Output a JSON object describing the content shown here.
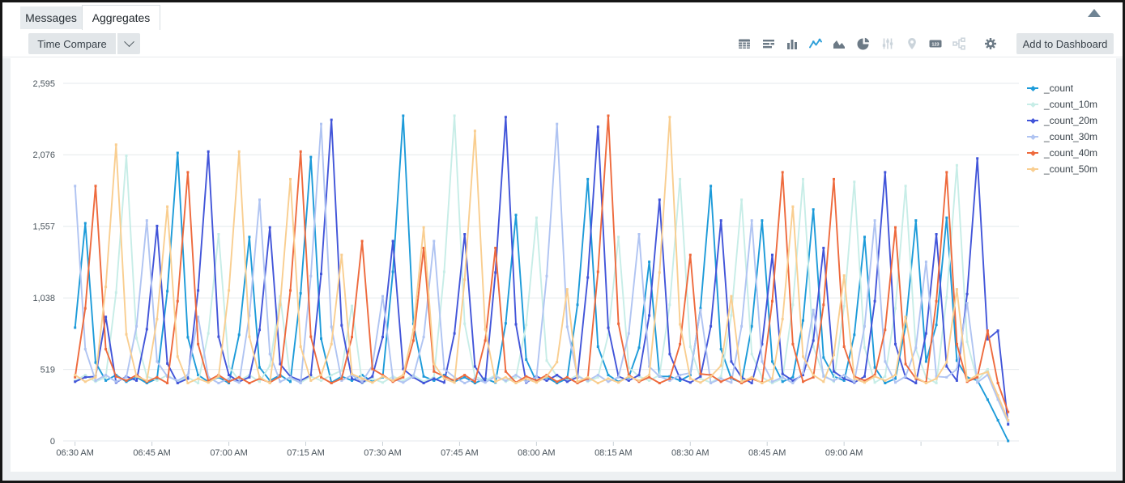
{
  "tabs": [
    {
      "label": "Messages",
      "active": false
    },
    {
      "label": "Aggregates",
      "active": true
    }
  ],
  "toolbar": {
    "time_compare_label": "Time Compare",
    "add_to_dashboard_label": "Add to Dashboard",
    "icons": [
      {
        "name": "table",
        "state": "enabled"
      },
      {
        "name": "bar-horizontal",
        "state": "enabled"
      },
      {
        "name": "bar-column",
        "state": "enabled"
      },
      {
        "name": "line-chart",
        "state": "active"
      },
      {
        "name": "area-chart",
        "state": "enabled"
      },
      {
        "name": "pie-chart",
        "state": "enabled"
      },
      {
        "name": "sliders",
        "state": "disabled"
      },
      {
        "name": "map-pin",
        "state": "disabled"
      },
      {
        "name": "single-value-123",
        "state": "enabled"
      },
      {
        "name": "node-graph",
        "state": "disabled"
      },
      {
        "name": "settings-gear",
        "state": "enabled"
      }
    ],
    "icon_colors": {
      "enabled": "#6C7A86",
      "active": "#2D9FD9",
      "disabled": "#CBD4DB"
    }
  },
  "chart_data": {
    "type": "line",
    "title": "",
    "legend_position": "right",
    "grid": "horizontal-only",
    "x_axis": {
      "tick_labels": [
        "06:30 AM",
        "06:45 AM",
        "07:00 AM",
        "07:15 AM",
        "07:30 AM",
        "07:45 AM",
        "08:00 AM",
        "08:15 AM",
        "08:30 AM",
        "08:45 AM",
        "09:00 AM"
      ],
      "tick_interval_min": 15,
      "unlabeled_tick_minutes": [
        165,
        180
      ]
    },
    "y_axis": {
      "max": 2595,
      "ticks": [
        {
          "value": 0,
          "label": "0"
        },
        {
          "value": 519,
          "label": "519"
        },
        {
          "value": 1038,
          "label": "1,038"
        },
        {
          "value": 1557,
          "label": "1,557"
        },
        {
          "value": 2076,
          "label": "2,076"
        },
        {
          "value": 2595,
          "label": "2,595"
        }
      ]
    },
    "point_step_min": 2,
    "end_min": 182,
    "baseline_cycle": [
      452,
      424,
      468,
      438,
      478,
      430,
      462,
      420
    ],
    "series": [
      {
        "name": "_count",
        "color": "#1d9bd9",
        "baseline_offset": 0,
        "spikes": [
          [
            2,
            1580
          ],
          [
            20,
            2090
          ],
          [
            34,
            1480
          ],
          [
            46,
            2060
          ],
          [
            64,
            2360
          ],
          [
            86,
            1640
          ],
          [
            100,
            1900
          ],
          [
            112,
            1300
          ],
          [
            124,
            1850
          ],
          [
            134,
            1600
          ],
          [
            144,
            1680
          ],
          [
            154,
            1480
          ],
          [
            164,
            1600
          ],
          [
            170,
            1620
          ]
        ],
        "tail": [
          [
            174,
            460
          ],
          [
            176,
            440
          ],
          [
            178,
            300
          ],
          [
            180,
            150
          ],
          [
            182,
            0
          ]
        ]
      },
      {
        "name": "_count_10m",
        "color": "#c7ede7",
        "baseline_offset": 3,
        "spikes": [
          [
            10,
            2070
          ],
          [
            28,
            1500
          ],
          [
            40,
            1050
          ],
          [
            54,
            980
          ],
          [
            74,
            2360
          ],
          [
            90,
            1620
          ],
          [
            106,
            1480
          ],
          [
            118,
            1900
          ],
          [
            130,
            1750
          ],
          [
            142,
            1900
          ],
          [
            152,
            1880
          ],
          [
            162,
            1850
          ],
          [
            172,
            2000
          ]
        ],
        "tail": [
          [
            178,
            520
          ],
          [
            180,
            300
          ],
          [
            182,
            130
          ]
        ]
      },
      {
        "name": "_count_20m",
        "color": "#4255d9",
        "baseline_offset": 5,
        "spikes": [
          [
            6,
            900
          ],
          [
            16,
            1560
          ],
          [
            26,
            2100
          ],
          [
            38,
            1550
          ],
          [
            50,
            2330
          ],
          [
            62,
            1450
          ],
          [
            76,
            1500
          ],
          [
            84,
            2350
          ],
          [
            102,
            2280
          ],
          [
            114,
            1750
          ],
          [
            126,
            1600
          ],
          [
            136,
            1350
          ],
          [
            146,
            1400
          ],
          [
            158,
            1950
          ],
          [
            168,
            1500
          ],
          [
            176,
            2050
          ]
        ],
        "tail": [
          [
            180,
            800
          ],
          [
            182,
            120
          ]
        ]
      },
      {
        "name": "_count_30m",
        "color": "#b0c4f2",
        "baseline_offset": 1,
        "spikes": [
          [
            0,
            1850
          ],
          [
            14,
            1600
          ],
          [
            24,
            900
          ],
          [
            36,
            1750
          ],
          [
            48,
            2300
          ],
          [
            60,
            1050
          ],
          [
            70,
            1450
          ],
          [
            94,
            2300
          ],
          [
            110,
            1500
          ],
          [
            122,
            950
          ],
          [
            132,
            1600
          ],
          [
            144,
            950
          ],
          [
            156,
            1600
          ],
          [
            166,
            1300
          ],
          [
            174,
            1000
          ]
        ],
        "tail": [
          [
            178,
            480
          ],
          [
            180,
            300
          ],
          [
            182,
            140
          ]
        ]
      },
      {
        "name": "_count_40m",
        "color": "#ee6a3d",
        "baseline_offset": 6,
        "spikes": [
          [
            4,
            1850
          ],
          [
            22,
            1950
          ],
          [
            44,
            2100
          ],
          [
            56,
            1450
          ],
          [
            68,
            1400
          ],
          [
            82,
            1400
          ],
          [
            104,
            2360
          ],
          [
            120,
            1350
          ],
          [
            138,
            1950
          ],
          [
            148,
            1900
          ],
          [
            160,
            1550
          ],
          [
            170,
            1950
          ],
          [
            178,
            800
          ]
        ],
        "tail": [
          [
            180,
            420
          ],
          [
            182,
            210
          ]
        ]
      },
      {
        "name": "_count_50m",
        "color": "#f9ce90",
        "baseline_offset": 4,
        "spikes": [
          [
            8,
            2150
          ],
          [
            18,
            1700
          ],
          [
            32,
            2100
          ],
          [
            42,
            1900
          ],
          [
            52,
            1350
          ],
          [
            68,
            1550
          ],
          [
            78,
            2250
          ],
          [
            96,
            1100
          ],
          [
            116,
            2350
          ],
          [
            128,
            1050
          ],
          [
            140,
            1700
          ],
          [
            150,
            1200
          ],
          [
            162,
            900
          ],
          [
            172,
            1100
          ]
        ],
        "tail": [
          [
            178,
            500
          ],
          [
            180,
            330
          ],
          [
            182,
            150
          ]
        ]
      }
    ]
  }
}
